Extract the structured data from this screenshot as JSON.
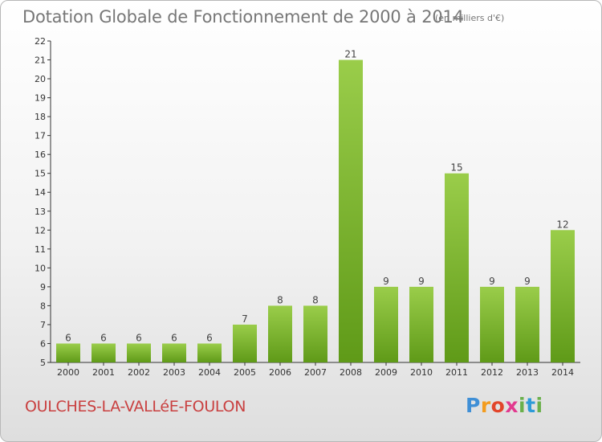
{
  "chart_data": {
    "type": "bar",
    "title": "Dotation Globale de Fonctionnement de 2000 à 2014",
    "subtitle": "(en milliers d'€)",
    "categories": [
      "2000",
      "2001",
      "2002",
      "2003",
      "2004",
      "2005",
      "2006",
      "2007",
      "2008",
      "2009",
      "2010",
      "2011",
      "2012",
      "2013",
      "2014"
    ],
    "values": [
      6,
      6,
      6,
      6,
      6,
      7,
      8,
      8,
      21,
      9,
      9,
      15,
      9,
      9,
      12
    ],
    "xlabel": "",
    "ylabel": "",
    "ylim": [
      5,
      22
    ],
    "yticks": [
      5,
      6,
      7,
      8,
      9,
      10,
      11,
      12,
      13,
      14,
      15,
      16,
      17,
      18,
      19,
      20,
      21,
      22
    ],
    "grid": false,
    "bar_color_top": "#9acd4a",
    "bar_color_bottom": "#5f9a18"
  },
  "commune": "OULCHES-LA-VALLéE-FOULON",
  "logo": {
    "text": "Proxiti"
  }
}
